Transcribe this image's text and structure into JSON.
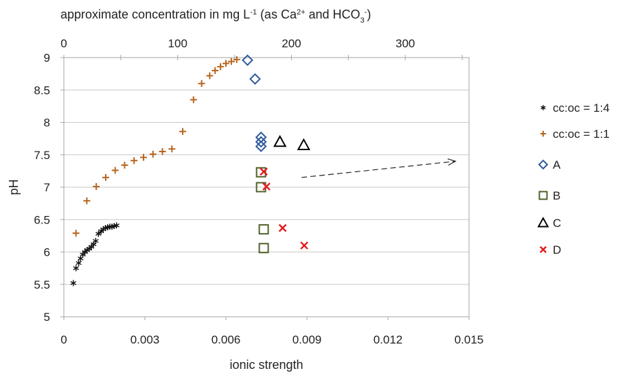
{
  "chart_data": {
    "type": "scatter",
    "title": "",
    "top_axis": {
      "label": "approximate concentration in mg L⁻¹ (as Ca²⁺ and HCO₃⁻)",
      "label_parts": [
        {
          "t": "approximate concentration in mg L"
        },
        {
          "t": "-1",
          "sup": true
        },
        {
          "t": " (as Ca"
        },
        {
          "t": "2+",
          "sup": true
        },
        {
          "t": " and HCO"
        },
        {
          "t": "3",
          "sub": true
        },
        {
          "t": "-",
          "sup": true
        },
        {
          "t": ")"
        }
      ],
      "ticks": [
        0,
        100,
        200,
        300
      ],
      "tick_labels": [
        "0",
        "100",
        "200",
        "300"
      ],
      "range": [
        0,
        356
      ]
    },
    "xlabel": "ionic strength",
    "ylabel": "pH",
    "xlim": [
      0,
      0.015
    ],
    "ylim": [
      5,
      9
    ],
    "x_ticks": [
      0,
      0.003,
      0.006,
      0.009,
      0.012,
      0.015
    ],
    "x_tick_labels": [
      "0",
      "0.003",
      "0.006",
      "0.009",
      "0.012",
      "0.015"
    ],
    "y_ticks": [
      5,
      5.5,
      6,
      6.5,
      7,
      7.5,
      8,
      8.5,
      9
    ],
    "y_tick_labels": [
      "5",
      "5.5",
      "6",
      "6.5",
      "7",
      "7.5",
      "8",
      "8.5",
      "9"
    ],
    "grid": "horizontal",
    "legend_position": "right",
    "annotations": [
      {
        "type": "dashed-arrow",
        "from": [
          0.0088,
          7.15
        ],
        "to": [
          0.0145,
          7.4
        ]
      }
    ],
    "series": [
      {
        "name": "cc:oc = 1:4",
        "marker": "asterisk",
        "color": "#111111",
        "points": [
          [
            0.00035,
            5.52
          ],
          [
            0.00045,
            5.75
          ],
          [
            0.00055,
            5.83
          ],
          [
            0.00062,
            5.9
          ],
          [
            0.0007,
            5.96
          ],
          [
            0.00078,
            6.0
          ],
          [
            0.00086,
            6.03
          ],
          [
            0.00094,
            6.05
          ],
          [
            0.00102,
            6.08
          ],
          [
            0.0011,
            6.12
          ],
          [
            0.00118,
            6.17
          ],
          [
            0.00128,
            6.28
          ],
          [
            0.00138,
            6.32
          ],
          [
            0.00146,
            6.35
          ],
          [
            0.00154,
            6.37
          ],
          [
            0.00162,
            6.38
          ],
          [
            0.0017,
            6.39
          ],
          [
            0.00178,
            6.39
          ],
          [
            0.00186,
            6.4
          ],
          [
            0.00195,
            6.41
          ]
        ]
      },
      {
        "name": "cc:oc = 1:1",
        "marker": "plus",
        "color": "#B5651D",
        "points": [
          [
            0.00045,
            6.29
          ],
          [
            0.00085,
            6.79
          ],
          [
            0.0012,
            7.01
          ],
          [
            0.00155,
            7.15
          ],
          [
            0.0019,
            7.26
          ],
          [
            0.00225,
            7.34
          ],
          [
            0.0026,
            7.41
          ],
          [
            0.00295,
            7.46
          ],
          [
            0.0033,
            7.51
          ],
          [
            0.00365,
            7.55
          ],
          [
            0.004,
            7.59
          ],
          [
            0.0044,
            7.86
          ],
          [
            0.0048,
            8.35
          ],
          [
            0.0051,
            8.6
          ],
          [
            0.0054,
            8.72
          ],
          [
            0.0056,
            8.8
          ],
          [
            0.0058,
            8.86
          ],
          [
            0.006,
            8.91
          ],
          [
            0.0062,
            8.94
          ],
          [
            0.0064,
            8.97
          ]
        ]
      },
      {
        "name": "A",
        "marker": "diamond",
        "color": "#2E5A9A",
        "points": [
          [
            0.0068,
            8.96
          ],
          [
            0.00708,
            8.67
          ],
          [
            0.0073,
            7.77
          ],
          [
            0.0073,
            7.7
          ],
          [
            0.0073,
            7.63
          ]
        ]
      },
      {
        "name": "B",
        "marker": "square",
        "color": "#4F6228",
        "points": [
          [
            0.0073,
            7.23
          ],
          [
            0.0073,
            7.0
          ],
          [
            0.0074,
            6.35
          ],
          [
            0.0074,
            6.06
          ]
        ]
      },
      {
        "name": "C",
        "marker": "triangle",
        "color": "#000000",
        "points": [
          [
            0.008,
            7.7
          ],
          [
            0.00888,
            7.65
          ]
        ]
      },
      {
        "name": "D",
        "marker": "x",
        "color": "#E31A1C",
        "points": [
          [
            0.0074,
            7.24
          ],
          [
            0.0075,
            7.01
          ],
          [
            0.0081,
            6.37
          ],
          [
            0.0089,
            6.1
          ]
        ]
      }
    ]
  }
}
